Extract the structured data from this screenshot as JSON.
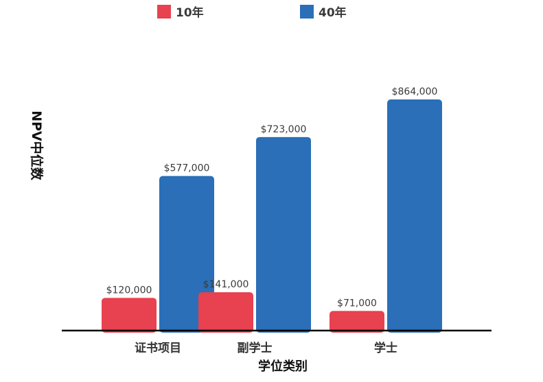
{
  "chart_data": {
    "type": "bar",
    "title": "",
    "categories": [
      "证书项目",
      "副学士",
      "学士"
    ],
    "series": [
      {
        "name": "10年",
        "values": [
          120000,
          141000,
          71000
        ],
        "labels": [
          "$120,000",
          "$141,000",
          "$71,000"
        ],
        "color": "#e8414f"
      },
      {
        "name": "40年",
        "values": [
          577000,
          723000,
          864000
        ],
        "labels": [
          "$577,000",
          "$723,000",
          "$864,000"
        ],
        "color": "#2a6fb8"
      }
    ],
    "xlabel": "学位类别",
    "ylabel": "NPV中位数",
    "ylim": [
      0,
      864000
    ],
    "grid": false,
    "legend_position": "top"
  }
}
